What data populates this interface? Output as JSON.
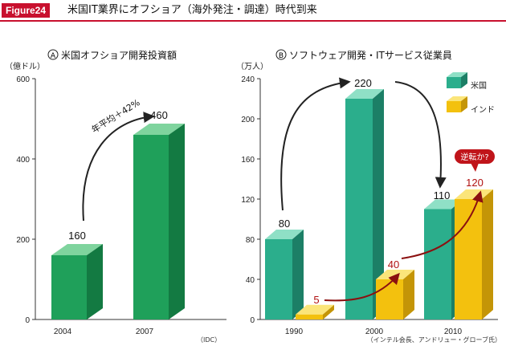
{
  "header": {
    "badge": "Figure24",
    "title": "米国IT業界にオフショア（海外発注・調達）時代到来"
  },
  "colors": {
    "header_red": "#c8102e",
    "green_front": "#1fa05a",
    "green_top": "#7fd49e",
    "green_side": "#137a42",
    "teal_front": "#2bae8c",
    "teal_top": "#8fe0c6",
    "teal_side": "#1c7f66",
    "yellow_front": "#f3c10e",
    "yellow_top": "#fbe57a",
    "yellow_side": "#c49507",
    "arrow_dark": "#222222",
    "arrow_red": "#8b1010",
    "bubble_red": "#c0141a"
  },
  "chart_data": [
    {
      "type": "bar",
      "title": "米国オフショア開発投資額",
      "title_mark": "A",
      "unit": "（億ドル）",
      "categories": [
        "2004",
        "2007"
      ],
      "series": [
        {
          "values": [
            160,
            460
          ]
        }
      ],
      "value_labels": [
        "160",
        "460"
      ],
      "ylim": [
        0,
        600
      ],
      "yticks": [
        0,
        200,
        400,
        600
      ],
      "grid": false,
      "annotation": "年平均＋42%",
      "source": "（IDC）"
    },
    {
      "type": "bar",
      "title": "ソフトウェア開発・ITサービス従業員",
      "title_mark": "B",
      "unit": "（万人）",
      "categories": [
        "1990",
        "2000",
        "2010"
      ],
      "series": [
        {
          "name": "米国",
          "values": [
            80,
            220,
            110
          ]
        },
        {
          "name": "インド",
          "values": [
            5,
            40,
            120
          ]
        }
      ],
      "value_labels": {
        "us": [
          "80",
          "220",
          "110"
        ],
        "india": [
          "5",
          "40",
          "120"
        ]
      },
      "ylim": [
        0,
        240
      ],
      "yticks": [
        0,
        40,
        80,
        120,
        160,
        200,
        240
      ],
      "grid": false,
      "legend": "top-right",
      "callout": "逆転か?",
      "source": "（インテル会長、アンドリュー・グローブ氏）"
    }
  ]
}
